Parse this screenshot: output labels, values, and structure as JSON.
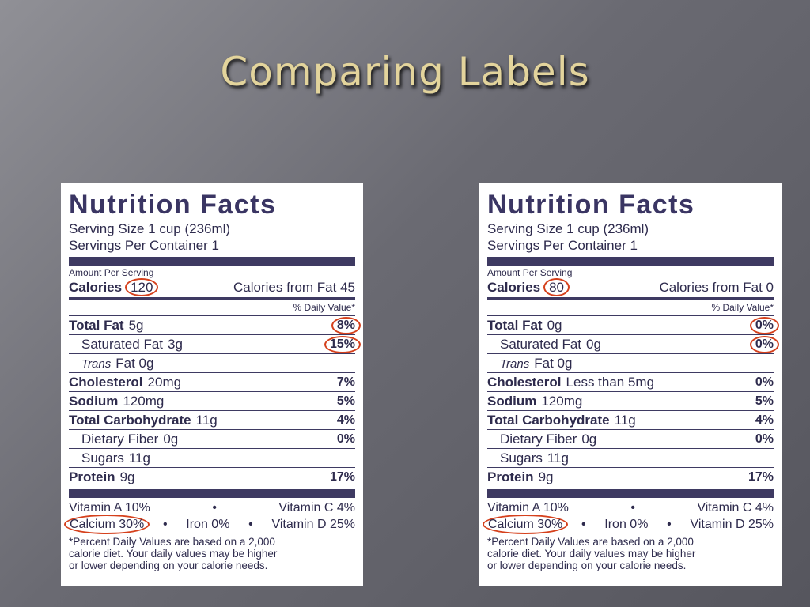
{
  "title": "Comparing Labels",
  "labels": [
    {
      "heading": "Nutrition Facts",
      "serving_size": "Serving Size 1 cup (236ml)",
      "servings": "Servings Per Container 1",
      "amount_per_serving": "Amount Per Serving",
      "calories": {
        "label": "Calories",
        "value": "120",
        "from_fat": "Calories from Fat 45"
      },
      "daily_value_header": "% Daily Value*",
      "rows": [
        {
          "name": "Total Fat",
          "amount": "5g",
          "dv": "8%"
        },
        {
          "name": "Saturated Fat",
          "amount": "3g",
          "dv": "15%"
        },
        {
          "name": "Trans",
          "amount": "Fat 0g"
        },
        {
          "name": "Cholesterol",
          "amount": "20mg",
          "dv": "7%"
        },
        {
          "name": "Sodium",
          "amount": "120mg",
          "dv": "5%"
        },
        {
          "name": "Total Carbohydrate",
          "amount": "11g",
          "dv": "4%"
        },
        {
          "name": "Dietary Fiber",
          "amount": "0g",
          "dv": "0%"
        },
        {
          "name": "Sugars",
          "amount": "11g"
        },
        {
          "name": "Protein",
          "amount": "9g",
          "dv": "17%"
        }
      ],
      "vitamins": [
        [
          "Vitamin A 10%",
          "•",
          "Vitamin C 4%"
        ],
        [
          "Calcium 30%",
          "•",
          "Iron 0%",
          "•",
          "Vitamin D 25%"
        ]
      ],
      "footnote": [
        "*Percent Daily Values are based on a 2,000",
        "calorie diet.  Your daily values may be higher",
        "or lower depending on your calorie needs."
      ]
    },
    {
      "heading": "Nutrition Facts",
      "serving_size": "Serving Size 1 cup (236ml)",
      "servings": "Servings Per Container 1",
      "amount_per_serving": "Amount Per Serving",
      "calories": {
        "label": "Calories",
        "value": "80",
        "from_fat": "Calories from Fat 0"
      },
      "daily_value_header": "% Daily Value*",
      "rows": [
        {
          "name": "Total Fat",
          "amount": "0g",
          "dv": "0%"
        },
        {
          "name": "Saturated Fat",
          "amount": "0g",
          "dv": "0%"
        },
        {
          "name": "Trans",
          "amount": "Fat 0g"
        },
        {
          "name": "Cholesterol",
          "amount": "Less than 5mg",
          "dv": "0%"
        },
        {
          "name": "Sodium",
          "amount": "120mg",
          "dv": "5%"
        },
        {
          "name": "Total Carbohydrate",
          "amount": "11g",
          "dv": "4%"
        },
        {
          "name": "Dietary Fiber",
          "amount": "0g",
          "dv": "0%"
        },
        {
          "name": "Sugars",
          "amount": "11g"
        },
        {
          "name": "Protein",
          "amount": "9g",
          "dv": "17%"
        }
      ],
      "vitamins": [
        [
          "Vitamin A 10%",
          "•",
          "Vitamin C 4%"
        ],
        [
          "Calcium 30%",
          "•",
          "Iron 0%",
          "•",
          "Vitamin D 25%"
        ]
      ],
      "footnote": [
        "*Percent Daily Values are based on a 2,000",
        "calorie diet.  Your daily values may be higher",
        "or lower depending on your calorie needs."
      ]
    }
  ]
}
